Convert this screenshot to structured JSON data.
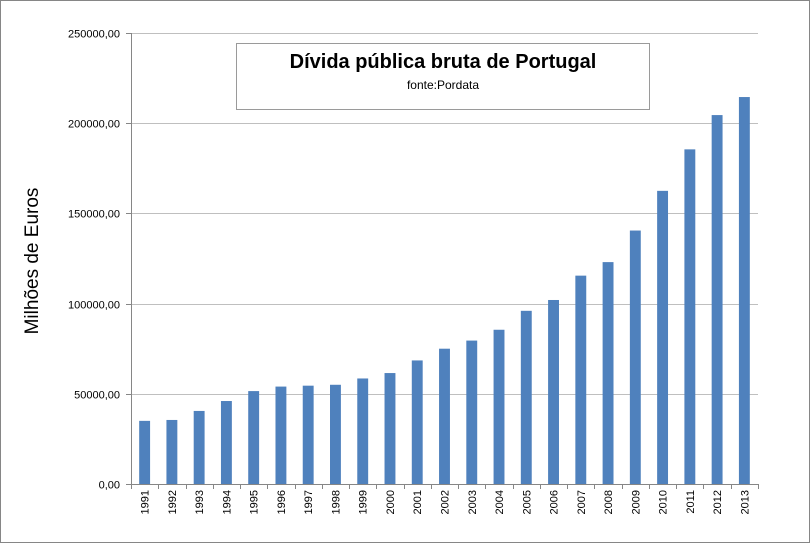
{
  "chart_data": {
    "type": "bar",
    "title": "Dívida pública bruta de Portugal",
    "subtitle": "fonte:Pordata",
    "xlabel": "",
    "ylabel": "Milhões de Euros",
    "ylim": [
      0,
      250000
    ],
    "yticks": [
      0,
      50000,
      100000,
      150000,
      200000,
      250000
    ],
    "ytick_labels": [
      "0,00",
      "50000,00",
      "100000,00",
      "150000,00",
      "200000,00",
      "250000,00"
    ],
    "grid": true,
    "categories": [
      "1991",
      "1992",
      "1993",
      "1994",
      "1995",
      "1996",
      "1997",
      "1998",
      "1999",
      "2000",
      "2001",
      "2002",
      "2003",
      "2004",
      "2005",
      "2006",
      "2007",
      "2008",
      "2009",
      "2010",
      "2011",
      "2012",
      "2013"
    ],
    "values": [
      35000,
      35500,
      40500,
      46000,
      51500,
      54000,
      54500,
      55000,
      58500,
      61500,
      68500,
      75000,
      79500,
      85500,
      96000,
      102000,
      115500,
      123000,
      140500,
      162500,
      185500,
      204500,
      214500
    ],
    "colors": {
      "bar": "#4f81bd",
      "grid": "#bfbfbf",
      "axis": "#868686"
    }
  }
}
